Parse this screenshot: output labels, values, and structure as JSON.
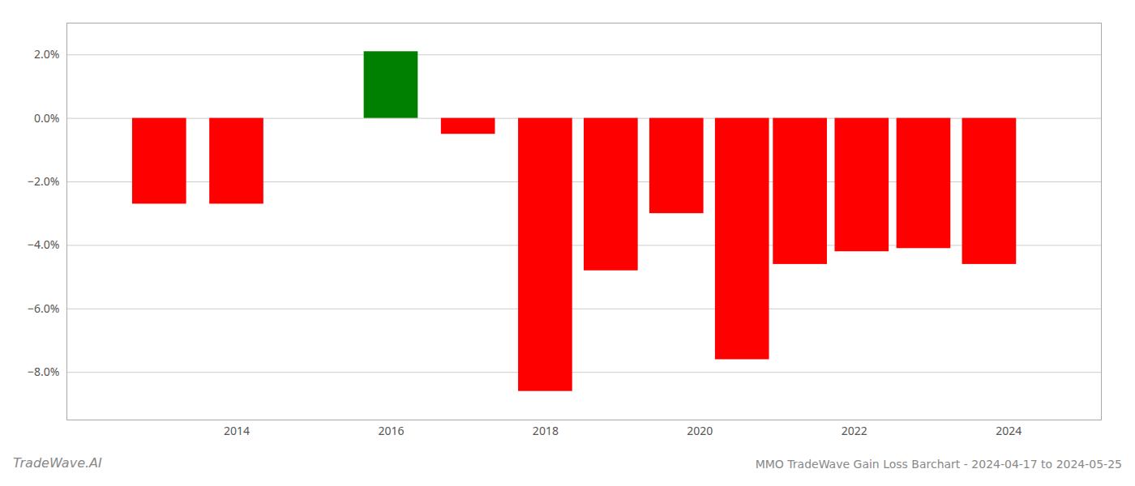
{
  "chart_data": {
    "type": "bar",
    "title": "MMO TradeWave Gain Loss Barchart - 2024-04-17 to 2024-05-25",
    "annotations": [
      "TradeWave.AI"
    ],
    "x": [
      2013.0,
      2014.0,
      2016.0,
      2017.0,
      2018.0,
      2018.85,
      2019.7,
      2020.55,
      2021.3,
      2022.1,
      2022.9,
      2023.75
    ],
    "values": [
      -0.027,
      -0.027,
      0.021,
      -0.005,
      -0.086,
      -0.048,
      -0.03,
      -0.076,
      -0.046,
      -0.042,
      -0.041,
      -0.046
    ],
    "colors": [
      "#ff0000",
      "#ff0000",
      "#008000",
      "#ff0000",
      "#ff0000",
      "#ff0000",
      "#ff0000",
      "#ff0000",
      "#ff0000",
      "#ff0000",
      "#ff0000",
      "#ff0000"
    ],
    "xlim": [
      2011.8,
      2025.2
    ],
    "xticks": [
      2014,
      2016,
      2018,
      2020,
      2022,
      2024
    ],
    "ylim": [
      -0.095,
      0.03
    ],
    "yticks": [
      {
        "value": -0.08,
        "label": "−8.0%"
      },
      {
        "value": -0.06,
        "label": "−6.0%"
      },
      {
        "value": -0.04,
        "label": "−4.0%"
      },
      {
        "value": -0.02,
        "label": "−2.0%"
      },
      {
        "value": 0.0,
        "label": "0.0%"
      },
      {
        "value": 0.02,
        "label": "2.0%"
      }
    ],
    "grid": true
  }
}
